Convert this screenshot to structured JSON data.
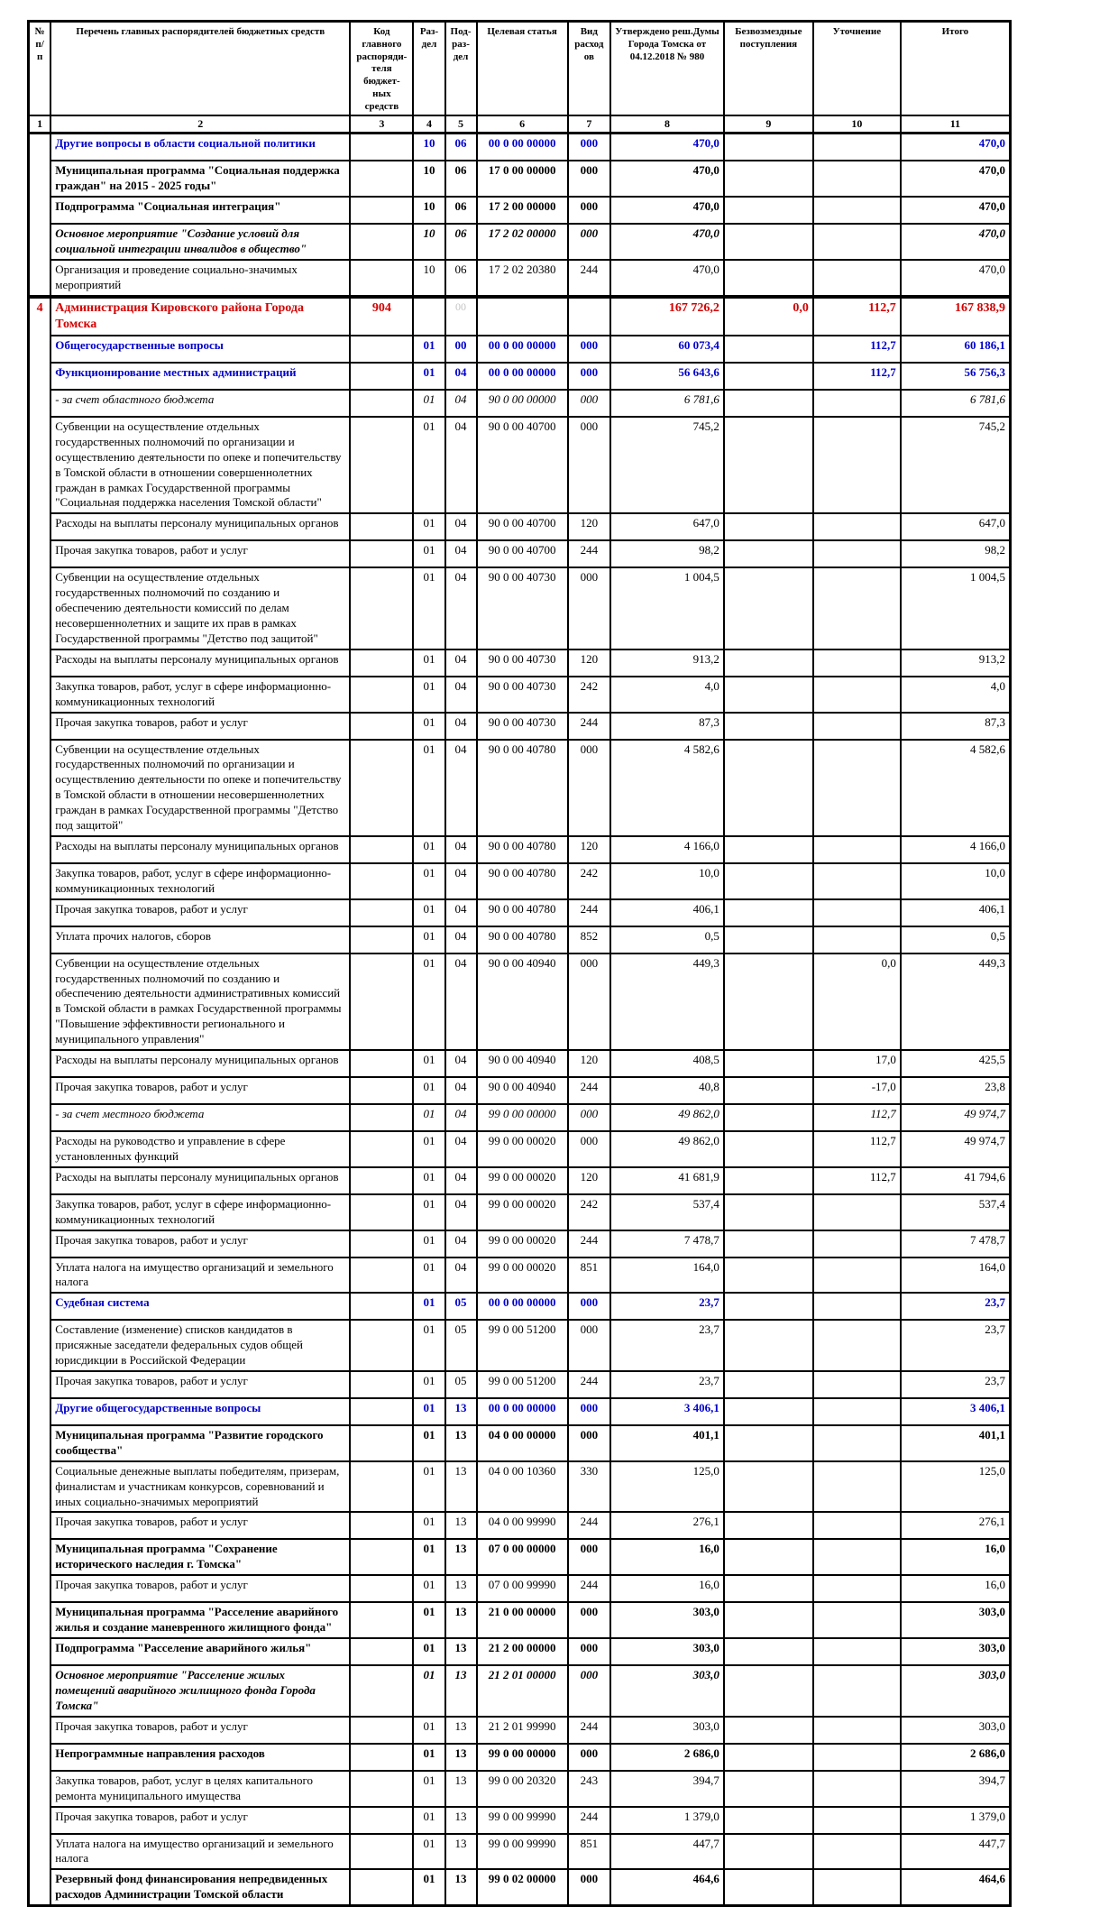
{
  "table": {
    "colors": {
      "blue": "#0000CC",
      "red": "#D40000"
    },
    "header": {
      "labels": [
        "№ п/п",
        "Перечень главных распорядителей бюджетных средств",
        "Код главного распоряди-теля бюджет-ных средств",
        "Раз-дел",
        "Под-раз-дел",
        "Целевая статья",
        "Вид расходов",
        "Утверждено реш.Думы Города Томска от 04.12.2018 № 980",
        "Безвозмездные поступления",
        "Уточнение",
        "Итого"
      ],
      "numbers": [
        "1",
        "2",
        "3",
        "4",
        "5",
        "6",
        "7",
        "8",
        "9",
        "10",
        "11"
      ]
    },
    "rows": [
      {
        "style": "blue",
        "numcell": {
          "span": 5,
          "text": ""
        },
        "name": "Другие вопросы в области социальной политики",
        "code": "",
        "razdel": "10",
        "podrazdel": "06",
        "target": "00 0 00 00000",
        "vid": "000",
        "approved": "470,0",
        "grants": "",
        "adjust": "",
        "total": "470,0"
      },
      {
        "style": "bold",
        "name": "Муниципальная программа \"Социальная поддержка граждан\" на 2015 - 2025 годы\"",
        "code": "",
        "razdel": "10",
        "podrazdel": "06",
        "target": "17 0 00 00000",
        "vid": "000",
        "approved": "470,0",
        "grants": "",
        "adjust": "",
        "total": "470,0"
      },
      {
        "style": "bold",
        "name": "Подпрограмма \"Социальная интеграция\"",
        "code": "",
        "razdel": "10",
        "podrazdel": "06",
        "target": "17 2 00 00000",
        "vid": "000",
        "approved": "470,0",
        "grants": "",
        "adjust": "",
        "total": "470,0"
      },
      {
        "style": "bold-italic",
        "name": "Основное мероприятие \"Создание условий для социальной интеграции инвалидов в общество\"",
        "code": "",
        "razdel": "10",
        "podrazdel": "06",
        "target": "17 2 02 00000",
        "vid": "000",
        "approved": "470,0",
        "grants": "",
        "adjust": "",
        "total": "470,0"
      },
      {
        "style": "",
        "name": "Организация и проведение социально-значимых мероприятий",
        "code": "",
        "razdel": "10",
        "podrazdel": "06",
        "target": "17 2 02 20380",
        "vid": "244",
        "approved": "470,0",
        "grants": "",
        "adjust": "",
        "total": "470,0"
      },
      {
        "style": "red",
        "section": true,
        "numcell": {
          "span": 43,
          "text": "4"
        },
        "ghost": true,
        "name": "Администрация Кировского района Города Томска",
        "code": "904",
        "razdel": "",
        "podrazdel": "00",
        "target": "",
        "vid": "",
        "approved": "167 726,2",
        "grants": "0,0",
        "adjust": "112,7",
        "total": "167 838,9"
      },
      {
        "style": "blue",
        "name": "Общегосударственные вопросы",
        "code": "",
        "razdel": "01",
        "podrazdel": "00",
        "target": "00 0 00 00000",
        "vid": "000",
        "approved": "60 073,4",
        "grants": "",
        "adjust": "112,7",
        "total": "60 186,1"
      },
      {
        "style": "blue",
        "name": "Функционирование местных администраций",
        "code": "",
        "razdel": "01",
        "podrazdel": "04",
        "target": "00 0 00 00000",
        "vid": "000",
        "approved": "56 643,6",
        "grants": "",
        "adjust": "112,7",
        "total": "56 756,3"
      },
      {
        "style": "italic",
        "name": "- за счет областного бюджета",
        "code": "",
        "razdel": "01",
        "podrazdel": "04",
        "target": "90 0 00 00000",
        "vid": "000",
        "approved": "6 781,6",
        "grants": "",
        "adjust": "",
        "total": "6 781,6"
      },
      {
        "style": "",
        "name": "Субвенции на осуществление отдельных государственных полномочий по организации и осуществлению деятельности по опеке и попечительству в Томской области в отношении совершеннолетних граждан в рамках Государственной программы \"Социальная поддержка населения Томской области\"",
        "code": "",
        "razdel": "01",
        "podrazdel": "04",
        "target": "90 0 00 40700",
        "vid": "000",
        "approved": "745,2",
        "grants": "",
        "adjust": "",
        "total": "745,2"
      },
      {
        "style": "",
        "name": "Расходы на выплаты персоналу муниципальных органов",
        "code": "",
        "razdel": "01",
        "podrazdel": "04",
        "target": "90 0 00 40700",
        "vid": "120",
        "approved": "647,0",
        "grants": "",
        "adjust": "",
        "total": "647,0"
      },
      {
        "style": "",
        "name": "Прочая закупка товаров, работ и услуг",
        "code": "",
        "razdel": "01",
        "podrazdel": "04",
        "target": "90 0 00 40700",
        "vid": "244",
        "approved": "98,2",
        "grants": "",
        "adjust": "",
        "total": "98,2"
      },
      {
        "style": "",
        "name": "Субвенции на осуществление отдельных государственных полномочий по созданию и обеспечению деятельности комиссий по делам несовершеннолетних и защите их прав в рамках Государственной программы \"Детство под защитой\"",
        "code": "",
        "razdel": "01",
        "podrazdel": "04",
        "target": "90 0 00 40730",
        "vid": "000",
        "approved": "1 004,5",
        "grants": "",
        "adjust": "",
        "total": "1 004,5"
      },
      {
        "style": "",
        "name": "Расходы на выплаты персоналу муниципальных органов",
        "code": "",
        "razdel": "01",
        "podrazdel": "04",
        "target": "90 0 00 40730",
        "vid": "120",
        "approved": "913,2",
        "grants": "",
        "adjust": "",
        "total": "913,2"
      },
      {
        "style": "",
        "name": "Закупка товаров, работ, услуг в сфере информационно-коммуникационных технологий",
        "code": "",
        "razdel": "01",
        "podrazdel": "04",
        "target": "90 0 00 40730",
        "vid": "242",
        "approved": "4,0",
        "grants": "",
        "adjust": "",
        "total": "4,0"
      },
      {
        "style": "",
        "name": "Прочая закупка товаров, работ и услуг",
        "code": "",
        "razdel": "01",
        "podrazdel": "04",
        "target": "90 0 00 40730",
        "vid": "244",
        "approved": "87,3",
        "grants": "",
        "adjust": "",
        "total": "87,3"
      },
      {
        "style": "",
        "name": "Субвенции на осуществление отдельных государственных полномочий по организации и осуществлению деятельности по опеке и попечительству в Томской области в отношении несовершеннолетних граждан в рамках Государственной программы \"Детство под защитой\"",
        "code": "",
        "razdel": "01",
        "podrazdel": "04",
        "target": "90 0 00 40780",
        "vid": "000",
        "approved": "4 582,6",
        "grants": "",
        "adjust": "",
        "total": "4 582,6"
      },
      {
        "style": "",
        "name": "Расходы на выплаты персоналу муниципальных органов",
        "code": "",
        "razdel": "01",
        "podrazdel": "04",
        "target": "90 0 00 40780",
        "vid": "120",
        "approved": "4 166,0",
        "grants": "",
        "adjust": "",
        "total": "4 166,0"
      },
      {
        "style": "",
        "name": "Закупка товаров, работ, услуг в сфере информационно-коммуникационных технологий",
        "code": "",
        "razdel": "01",
        "podrazdel": "04",
        "target": "90 0 00 40780",
        "vid": "242",
        "approved": "10,0",
        "grants": "",
        "adjust": "",
        "total": "10,0"
      },
      {
        "style": "",
        "name": "Прочая закупка товаров, работ и услуг",
        "code": "",
        "razdel": "01",
        "podrazdel": "04",
        "target": "90 0 00 40780",
        "vid": "244",
        "approved": "406,1",
        "grants": "",
        "adjust": "",
        "total": "406,1"
      },
      {
        "style": "",
        "name": "Уплата прочих налогов, сборов",
        "code": "",
        "razdel": "01",
        "podrazdel": "04",
        "target": "90 0 00 40780",
        "vid": "852",
        "approved": "0,5",
        "grants": "",
        "adjust": "",
        "total": "0,5"
      },
      {
        "style": "",
        "name": "Субвенции на осуществление отдельных государственных полномочий по созданию и обеспечению деятельности административных комиссий в Томской области в рамках Государственной программы \"Повышение эффективности регионального и муниципального управления\"",
        "code": "",
        "razdel": "01",
        "podrazdel": "04",
        "target": "90 0 00 40940",
        "vid": "000",
        "approved": "449,3",
        "grants": "",
        "adjust": "0,0",
        "total": "449,3"
      },
      {
        "style": "",
        "name": "Расходы на выплаты персоналу муниципальных органов",
        "code": "",
        "razdel": "01",
        "podrazdel": "04",
        "target": "90 0 00 40940",
        "vid": "120",
        "approved": "408,5",
        "grants": "",
        "adjust": "17,0",
        "total": "425,5"
      },
      {
        "style": "",
        "name": "Прочая закупка товаров, работ и услуг",
        "code": "",
        "razdel": "01",
        "podrazdel": "04",
        "target": "90 0 00 40940",
        "vid": "244",
        "approved": "40,8",
        "grants": "",
        "adjust": "-17,0",
        "total": "23,8"
      },
      {
        "style": "italic",
        "name": "- за счет местного бюджета",
        "code": "",
        "razdel": "01",
        "podrazdel": "04",
        "target": "99 0 00 00000",
        "vid": "000",
        "approved": "49 862,0",
        "grants": "",
        "adjust": "112,7",
        "total": "49 974,7"
      },
      {
        "style": "",
        "name": "Расходы на руководство и управление в сфере установленных функций",
        "code": "",
        "razdel": "01",
        "podrazdel": "04",
        "target": "99 0 00 00020",
        "vid": "000",
        "approved": "49 862,0",
        "grants": "",
        "adjust": "112,7",
        "total": "49 974,7"
      },
      {
        "style": "",
        "name": "Расходы на выплаты персоналу муниципальных органов",
        "code": "",
        "razdel": "01",
        "podrazdel": "04",
        "target": "99 0 00 00020",
        "vid": "120",
        "approved": "41 681,9",
        "grants": "",
        "adjust": "112,7",
        "total": "41 794,6"
      },
      {
        "style": "",
        "name": "Закупка товаров, работ, услуг в сфере информационно-коммуникационных технологий",
        "code": "",
        "razdel": "01",
        "podrazdel": "04",
        "target": "99 0 00 00020",
        "vid": "242",
        "approved": "537,4",
        "grants": "",
        "adjust": "",
        "total": "537,4"
      },
      {
        "style": "",
        "name": "Прочая закупка товаров, работ и услуг",
        "code": "",
        "razdel": "01",
        "podrazdel": "04",
        "target": "99 0 00 00020",
        "vid": "244",
        "approved": "7 478,7",
        "grants": "",
        "adjust": "",
        "total": "7 478,7"
      },
      {
        "style": "",
        "name": "Уплата налога на имущество организаций и земельного налога",
        "code": "",
        "razdel": "01",
        "podrazdel": "04",
        "target": "99 0 00 00020",
        "vid": "851",
        "approved": "164,0",
        "grants": "",
        "adjust": "",
        "total": "164,0"
      },
      {
        "style": "blue",
        "name": "Судебная система",
        "code": "",
        "razdel": "01",
        "podrazdel": "05",
        "target": "00 0 00 00000",
        "vid": "000",
        "approved": "23,7",
        "grants": "",
        "adjust": "",
        "total": "23,7"
      },
      {
        "style": "",
        "name": "Составление (изменение) списков кандидатов в присяжные заседатели федеральных судов общей юрисдикции в Российской Федерации",
        "code": "",
        "razdel": "01",
        "podrazdel": "05",
        "target": "99 0 00 51200",
        "vid": "000",
        "approved": "23,7",
        "grants": "",
        "adjust": "",
        "total": "23,7"
      },
      {
        "style": "",
        "name": "Прочая закупка товаров, работ и услуг",
        "code": "",
        "razdel": "01",
        "podrazdel": "05",
        "target": "99 0 00 51200",
        "vid": "244",
        "approved": "23,7",
        "grants": "",
        "adjust": "",
        "total": "23,7"
      },
      {
        "style": "blue",
        "name": "Другие общегосударственные вопросы",
        "code": "",
        "razdel": "01",
        "podrazdel": "13",
        "target": "00 0 00 00000",
        "vid": "000",
        "approved": "3 406,1",
        "grants": "",
        "adjust": "",
        "total": "3 406,1"
      },
      {
        "style": "bold",
        "name": "Муниципальная программа \"Развитие городского сообщества\"",
        "code": "",
        "razdel": "01",
        "podrazdel": "13",
        "target": "04 0 00 00000",
        "vid": "000",
        "approved": "401,1",
        "grants": "",
        "adjust": "",
        "total": "401,1"
      },
      {
        "style": "",
        "name": "Социальные денежные выплаты победителям, призерам, финалистам и участникам конкурсов, соревнований и иных социально-значимых мероприятий",
        "code": "",
        "razdel": "01",
        "podrazdel": "13",
        "target": "04 0 00 10360",
        "vid": "330",
        "approved": "125,0",
        "grants": "",
        "adjust": "",
        "total": "125,0"
      },
      {
        "style": "",
        "name": "Прочая закупка товаров, работ и услуг",
        "code": "",
        "razdel": "01",
        "podrazdel": "13",
        "target": "04 0 00 99990",
        "vid": "244",
        "approved": "276,1",
        "grants": "",
        "adjust": "",
        "total": "276,1"
      },
      {
        "style": "bold",
        "name": "Муниципальная программа \"Сохранение исторического наследия г. Томска\"",
        "code": "",
        "razdel": "01",
        "podrazdel": "13",
        "target": "07 0 00 00000",
        "vid": "000",
        "approved": "16,0",
        "grants": "",
        "adjust": "",
        "total": "16,0"
      },
      {
        "style": "",
        "name": "Прочая закупка товаров, работ и услуг",
        "code": "",
        "razdel": "01",
        "podrazdel": "13",
        "target": "07 0 00 99990",
        "vid": "244",
        "approved": "16,0",
        "grants": "",
        "adjust": "",
        "total": "16,0"
      },
      {
        "style": "bold",
        "name": "Муниципальная программа \"Расселение аварийного жилья и создание маневренного жилищного фонда\"",
        "code": "",
        "razdel": "01",
        "podrazdel": "13",
        "target": "21 0 00 00000",
        "vid": "000",
        "approved": "303,0",
        "grants": "",
        "adjust": "",
        "total": "303,0"
      },
      {
        "style": "bold",
        "name": "Подпрограмма \"Расселение аварийного жилья\"",
        "code": "",
        "razdel": "01",
        "podrazdel": "13",
        "target": "21 2 00 00000",
        "vid": "000",
        "approved": "303,0",
        "grants": "",
        "adjust": "",
        "total": "303,0"
      },
      {
        "style": "bold-italic",
        "name": "Основное мероприятие \"Расселение жилых помещений аварийного жилищного фонда Города Томска\"",
        "code": "",
        "razdel": "01",
        "podrazdel": "13",
        "target": "21 2 01 00000",
        "vid": "000",
        "approved": "303,0",
        "grants": "",
        "adjust": "",
        "total": "303,0"
      },
      {
        "style": "",
        "name": "Прочая закупка товаров, работ и услуг",
        "code": "",
        "razdel": "01",
        "podrazdel": "13",
        "target": "21 2 01 99990",
        "vid": "244",
        "approved": "303,0",
        "grants": "",
        "adjust": "",
        "total": "303,0"
      },
      {
        "style": "bold",
        "name": "Непрограммные направления расходов",
        "code": "",
        "razdel": "01",
        "podrazdel": "13",
        "target": "99 0 00 00000",
        "vid": "000",
        "approved": "2 686,0",
        "grants": "",
        "adjust": "",
        "total": "2 686,0"
      },
      {
        "style": "",
        "name": "Закупка товаров, работ, услуг в целях капитального ремонта муниципального имущества",
        "code": "",
        "razdel": "01",
        "podrazdel": "13",
        "target": "99 0 00 20320",
        "vid": "243",
        "approved": "394,7",
        "grants": "",
        "adjust": "",
        "total": "394,7"
      },
      {
        "style": "",
        "name": "Прочая закупка товаров, работ и услуг",
        "code": "",
        "razdel": "01",
        "podrazdel": "13",
        "target": "99 0 00 99990",
        "vid": "244",
        "approved": "1 379,0",
        "grants": "",
        "adjust": "",
        "total": "1 379,0"
      },
      {
        "style": "",
        "name": "Уплата налога на имущество организаций и земельного налога",
        "code": "",
        "razdel": "01",
        "podrazdel": "13",
        "target": "99 0 00 99990",
        "vid": "851",
        "approved": "447,7",
        "grants": "",
        "adjust": "",
        "total": "447,7"
      },
      {
        "style": "bold",
        "name": "Резервный фонд финансирования непредвиденных расходов Администрации Томской области",
        "code": "",
        "razdel": "01",
        "podrazdel": "13",
        "target": "99 0 02 00000",
        "vid": "000",
        "approved": "464,6",
        "grants": "",
        "adjust": "",
        "total": "464,6"
      }
    ]
  }
}
